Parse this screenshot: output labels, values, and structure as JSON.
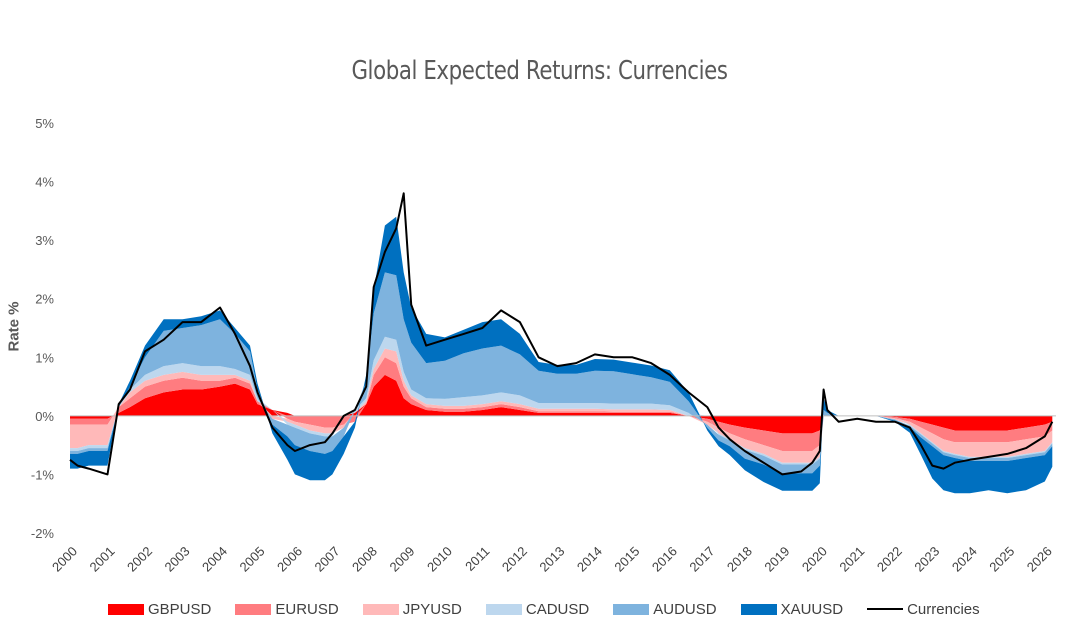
{
  "chart_data": {
    "type": "area",
    "title": "Global Expected Returns: Currencies",
    "ylabel": "Rate %",
    "xlabel": "",
    "ylim": [
      -2,
      5
    ],
    "xlim": [
      2000,
      2026.3
    ],
    "y_ticks": [
      -2,
      -1,
      0,
      1,
      2,
      3,
      4,
      5
    ],
    "y_tick_labels": [
      "-2%",
      "-1%",
      "0%",
      "1%",
      "2%",
      "3%",
      "4%",
      "5%"
    ],
    "x_ticks": [
      "2000",
      "2001",
      "2002",
      "2003",
      "2004",
      "2005",
      "2006",
      "2007",
      "2008",
      "2009",
      "2010",
      "2011",
      "2012",
      "2013",
      "2014",
      "2015",
      "2016",
      "2017",
      "2018",
      "2019",
      "2020",
      "2021",
      "2022",
      "2023",
      "2024",
      "2025",
      "2026"
    ],
    "grid": false,
    "legend_position": "bottom",
    "x": [
      2000,
      2000.2,
      2000.5,
      2001,
      2001.3,
      2001.6,
      2002,
      2002.5,
      2003,
      2003.5,
      2004,
      2004.4,
      2004.8,
      2005,
      2005.4,
      2005.8,
      2006,
      2006.4,
      2006.8,
      2007,
      2007.3,
      2007.6,
      2007.9,
      2008.1,
      2008.4,
      2008.7,
      2008.9,
      2009.1,
      2009.5,
      2010,
      2010.5,
      2011,
      2011.5,
      2012,
      2012.5,
      2013,
      2013.5,
      2014,
      2014.5,
      2015,
      2015.5,
      2016,
      2016.5,
      2017,
      2017.3,
      2017.6,
      2018,
      2018.5,
      2019,
      2019.5,
      2019.8,
      2020,
      2020.1,
      2020.2,
      2020.5,
      2021,
      2021.5,
      2022,
      2022.4,
      2022.7,
      2023,
      2023.3,
      2023.6,
      2024,
      2024.5,
      2025,
      2025.5,
      2026,
      2026.2
    ],
    "series": [
      {
        "name": "GBPUSD",
        "color": "#ff0000",
        "values": [
          -0.05,
          -0.05,
          -0.05,
          -0.05,
          0.05,
          0.15,
          0.3,
          0.4,
          0.45,
          0.45,
          0.5,
          0.55,
          0.45,
          0.2,
          0.1,
          0.05,
          0,
          0,
          0,
          0,
          0,
          0.05,
          0.2,
          0.5,
          0.7,
          0.6,
          0.3,
          0.2,
          0.1,
          0.07,
          0.07,
          0.1,
          0.15,
          0.1,
          0.05,
          0.05,
          0.05,
          0.05,
          0.05,
          0.05,
          0.05,
          0.05,
          0,
          -0.05,
          -0.1,
          -0.15,
          -0.2,
          -0.25,
          -0.3,
          -0.3,
          -0.3,
          -0.25,
          0,
          0,
          0,
          0,
          0,
          -0.02,
          -0.05,
          -0.1,
          -0.15,
          -0.2,
          -0.25,
          -0.25,
          -0.25,
          -0.25,
          -0.2,
          -0.15,
          -0.1
        ]
      },
      {
        "name": "EURUSD",
        "color": "#ff7c80",
        "values": [
          -0.1,
          -0.1,
          -0.1,
          -0.1,
          0.1,
          0.15,
          0.2,
          0.2,
          0.2,
          0.15,
          0.1,
          0.1,
          0.1,
          0.05,
          0,
          -0.05,
          -0.1,
          -0.15,
          -0.2,
          -0.2,
          -0.15,
          -0.1,
          0,
          0.2,
          0.3,
          0.3,
          0.2,
          0.1,
          0.05,
          0.05,
          0.05,
          0.05,
          0.05,
          0.05,
          0.03,
          0.03,
          0.03,
          0.03,
          0.02,
          0.02,
          0.02,
          0.02,
          0,
          -0.05,
          -0.1,
          -0.15,
          -0.2,
          -0.25,
          -0.3,
          -0.3,
          -0.3,
          -0.25,
          0,
          0,
          0,
          0,
          0,
          -0.02,
          -0.05,
          -0.1,
          -0.15,
          -0.2,
          -0.2,
          -0.2,
          -0.2,
          -0.2,
          -0.2,
          -0.2,
          -0.15
        ]
      },
      {
        "name": "JPYUSD",
        "color": "#ffb9b9",
        "values": [
          -0.4,
          -0.4,
          -0.35,
          -0.35,
          0,
          0.1,
          0.1,
          0.1,
          0.1,
          0.1,
          0.1,
          0.05,
          0.05,
          0,
          -0.05,
          -0.05,
          -0.05,
          -0.1,
          -0.1,
          -0.1,
          -0.05,
          0,
          0.05,
          0.1,
          0.15,
          0.2,
          0.1,
          0.05,
          0.05,
          0.05,
          0.05,
          0.05,
          0.05,
          0.05,
          0.04,
          0.04,
          0.04,
          0.04,
          0.04,
          0.04,
          0.04,
          0.03,
          0,
          -0.05,
          -0.1,
          -0.1,
          -0.15,
          -0.15,
          -0.2,
          -0.2,
          -0.2,
          -0.2,
          0,
          0,
          0,
          0,
          0,
          -0.02,
          -0.05,
          -0.1,
          -0.15,
          -0.2,
          -0.2,
          -0.25,
          -0.25,
          -0.25,
          -0.25,
          -0.25,
          -0.2
        ]
      },
      {
        "name": "CADUSD",
        "color": "#bdd7ee",
        "values": [
          -0.05,
          -0.05,
          -0.05,
          -0.05,
          0,
          0.05,
          0.1,
          0.15,
          0.15,
          0.15,
          0.15,
          0.1,
          0.1,
          0.05,
          0,
          -0.05,
          -0.05,
          -0.05,
          -0.05,
          -0.05,
          0,
          0.05,
          0.05,
          0.15,
          0.2,
          0.2,
          0.15,
          0.1,
          0.1,
          0.12,
          0.15,
          0.15,
          0.15,
          0.15,
          0.1,
          0.1,
          0.1,
          0.1,
          0.1,
          0.1,
          0.1,
          0.08,
          0.05,
          0,
          -0.02,
          -0.02,
          -0.03,
          -0.03,
          -0.03,
          -0.03,
          -0.03,
          -0.03,
          0,
          0,
          0,
          0,
          0,
          0,
          -0.02,
          -0.02,
          -0.02,
          -0.02,
          -0.02,
          -0.02,
          -0.02,
          -0.02,
          -0.02,
          -0.02,
          -0.02
        ]
      },
      {
        "name": "AUDUSD",
        "color": "#7eb3de",
        "values": [
          -0.05,
          -0.05,
          -0.05,
          -0.05,
          0,
          0.05,
          0.3,
          0.6,
          0.6,
          0.7,
          0.8,
          0.6,
          0.4,
          0.15,
          -0.1,
          -0.2,
          -0.3,
          -0.3,
          -0.3,
          -0.25,
          -0.15,
          0,
          0.3,
          0.8,
          1.1,
          1.1,
          0.9,
          0.8,
          0.6,
          0.65,
          0.75,
          0.8,
          0.8,
          0.7,
          0.55,
          0.5,
          0.5,
          0.55,
          0.55,
          0.5,
          0.45,
          0.4,
          0.2,
          -0.05,
          -0.1,
          -0.1,
          -0.15,
          -0.15,
          -0.15,
          -0.15,
          -0.15,
          -0.12,
          0.1,
          0.05,
          0,
          0,
          0,
          -0.02,
          -0.02,
          -0.05,
          -0.05,
          -0.05,
          -0.05,
          -0.05,
          -0.05,
          -0.05,
          -0.05,
          -0.05,
          -0.05
        ]
      },
      {
        "name": "XAUUSD",
        "color": "#0070c0",
        "values": [
          -0.25,
          -0.25,
          -0.25,
          -0.25,
          0.05,
          0.1,
          0.2,
          0.2,
          0.15,
          0.15,
          0.15,
          0.1,
          0.1,
          0.1,
          -0.15,
          -0.4,
          -0.5,
          -0.5,
          -0.45,
          -0.4,
          -0.3,
          -0.1,
          0.1,
          0.4,
          0.8,
          1.0,
          0.8,
          0.6,
          0.5,
          0.4,
          0.4,
          0.45,
          0.45,
          0.35,
          0.15,
          0.15,
          0.15,
          0.2,
          0.2,
          0.2,
          0.2,
          0.2,
          0.15,
          -0.05,
          -0.1,
          -0.15,
          -0.2,
          -0.3,
          -0.3,
          -0.3,
          -0.3,
          -0.3,
          0.2,
          0.05,
          0,
          0,
          0,
          -0.02,
          -0.1,
          -0.3,
          -0.55,
          -0.6,
          -0.6,
          -0.55,
          -0.5,
          -0.55,
          -0.55,
          -0.45,
          -0.35
        ]
      }
    ],
    "line_series": {
      "name": "Currencies",
      "color": "#000000",
      "values": [
        -0.75,
        -0.85,
        -0.9,
        -1.0,
        0.2,
        0.45,
        1.1,
        1.3,
        1.6,
        1.6,
        1.85,
        1.4,
        0.85,
        0.4,
        -0.2,
        -0.5,
        -0.6,
        -0.5,
        -0.45,
        -0.3,
        0,
        0.1,
        0.5,
        2.2,
        2.8,
        3.2,
        3.8,
        1.9,
        1.2,
        1.3,
        1.4,
        1.5,
        1.8,
        1.6,
        1.0,
        0.85,
        0.9,
        1.05,
        1.0,
        1.0,
        0.9,
        0.7,
        0.4,
        0.15,
        -0.2,
        -0.4,
        -0.6,
        -0.8,
        -1.0,
        -0.95,
        -0.8,
        -0.6,
        0.45,
        0.1,
        -0.1,
        -0.05,
        -0.1,
        -0.1,
        -0.2,
        -0.5,
        -0.85,
        -0.9,
        -0.8,
        -0.75,
        -0.7,
        -0.65,
        -0.55,
        -0.35,
        -0.1
      ]
    }
  }
}
